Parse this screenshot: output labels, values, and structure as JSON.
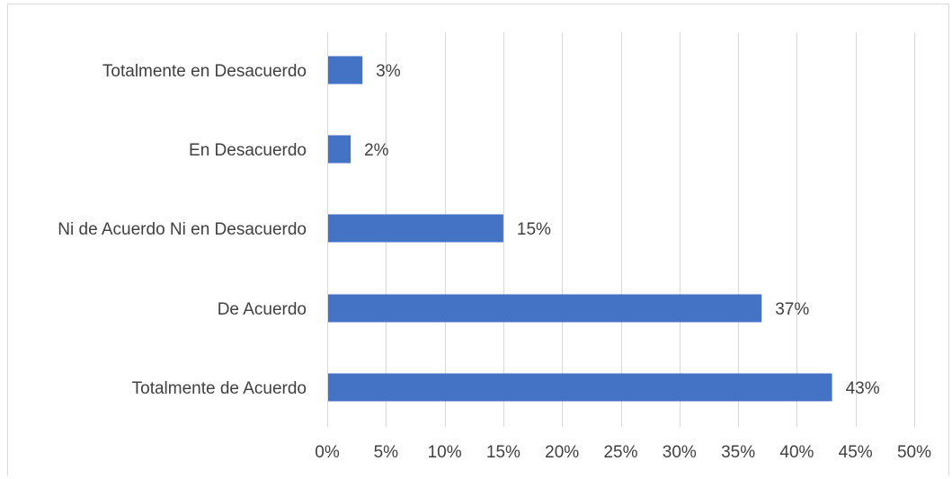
{
  "chart_data": {
    "type": "bar",
    "orientation": "horizontal",
    "title": "",
    "xlabel": "",
    "ylabel": "",
    "categories": [
      "Totalmente en Desacuerdo",
      "En Desacuerdo",
      "Ni de Acuerdo Ni en Desacuerdo",
      "De Acuerdo",
      "Totalmente de Acuerdo"
    ],
    "values": [
      3,
      2,
      15,
      37,
      43
    ],
    "data_labels": [
      "3%",
      "2%",
      "15%",
      "37%",
      "43%"
    ],
    "xlim": [
      0,
      50
    ],
    "x_ticks": [
      0,
      5,
      10,
      15,
      20,
      25,
      30,
      35,
      40,
      45,
      50
    ],
    "x_tick_labels": [
      "0%",
      "5%",
      "10%",
      "15%",
      "20%",
      "25%",
      "30%",
      "35%",
      "40%",
      "45%",
      "50%"
    ],
    "grid": "vertical",
    "legend": "none",
    "bar_color": "#4472c4",
    "grid_color": "#d9d9d9",
    "text_color": "#404040"
  }
}
